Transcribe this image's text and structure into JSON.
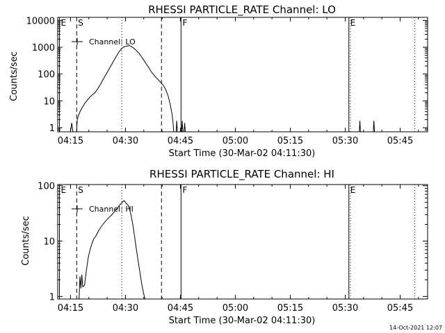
{
  "footer_timestamp": "14-Oct-2021 12:07",
  "chart_data": [
    {
      "type": "line",
      "title": "RHESSI PARTICLE_RATE Channel: LO",
      "xlabel": "Start Time (30-Mar-02 04:11:30)",
      "ylabel": "Counts/sec",
      "y_scale": "log",
      "xlim": [
        "04:11:30",
        "05:52:30"
      ],
      "ylim": [
        0.7,
        13000
      ],
      "x_ticks": [
        "04:15",
        "04:30",
        "04:45",
        "05:00",
        "05:15",
        "05:30",
        "05:45"
      ],
      "y_ticks": [
        {
          "value": 1,
          "label": "1"
        },
        {
          "value": 10,
          "label": "10"
        },
        {
          "value": 100,
          "label": "100"
        },
        {
          "value": 1000,
          "label": "1000"
        },
        {
          "value": 10000,
          "label": "10000"
        }
      ],
      "legend": {
        "position": "top-left",
        "label": "Channel: LO"
      },
      "markers": [
        {
          "time": "04:11:58",
          "label": "E",
          "style": "solid"
        },
        {
          "time": "04:16:41",
          "label": "S",
          "style": "dashed"
        },
        {
          "time": "04:29:00",
          "label": "",
          "style": "dotted"
        },
        {
          "time": "04:39:50",
          "label": "",
          "style": "dashed"
        },
        {
          "time": "04:45:10",
          "label": "F",
          "style": "solid"
        },
        {
          "time": "05:31:00",
          "label": "E",
          "style": "solid"
        },
        {
          "time": "05:31:25",
          "label": "",
          "style": "dotted"
        },
        {
          "time": "05:49:00",
          "label": "",
          "style": "dotted"
        }
      ],
      "series": [
        {
          "name": "Channel: LO",
          "points": [
            [
              "04:15:00",
              0.7
            ],
            [
              "04:15:20",
              1.5
            ],
            [
              "04:15:40",
              0.7
            ],
            [
              "04:16:40",
              0.7
            ],
            [
              "04:16:50",
              2.0
            ],
            [
              "04:17:10",
              2.8
            ],
            [
              "04:17:40",
              4.2
            ],
            [
              "04:18:20",
              6.0
            ],
            [
              "04:19:00",
              8.5
            ],
            [
              "04:19:40",
              11
            ],
            [
              "04:20:20",
              14
            ],
            [
              "04:21:00",
              17
            ],
            [
              "04:21:40",
              20
            ],
            [
              "04:22:20",
              27
            ],
            [
              "04:23:00",
              38
            ],
            [
              "04:23:40",
              55
            ],
            [
              "04:24:20",
              80
            ],
            [
              "04:25:00",
              115
            ],
            [
              "04:25:40",
              165
            ],
            [
              "04:26:20",
              240
            ],
            [
              "04:27:00",
              350
            ],
            [
              "04:27:40",
              500
            ],
            [
              "04:28:20",
              700
            ],
            [
              "04:29:00",
              900
            ],
            [
              "04:29:40",
              1050
            ],
            [
              "04:30:20",
              1100
            ],
            [
              "04:31:00",
              1150
            ],
            [
              "04:31:40",
              1050
            ],
            [
              "04:32:20",
              900
            ],
            [
              "04:33:00",
              750
            ],
            [
              "04:33:40",
              600
            ],
            [
              "04:34:20",
              450
            ],
            [
              "04:35:00",
              330
            ],
            [
              "04:35:40",
              240
            ],
            [
              "04:36:20",
              175
            ],
            [
              "04:37:00",
              125
            ],
            [
              "04:37:40",
              95
            ],
            [
              "04:38:20",
              75
            ],
            [
              "04:39:00",
              60
            ],
            [
              "04:39:40",
              48
            ],
            [
              "04:40:20",
              38
            ],
            [
              "04:41:00",
              26
            ],
            [
              "04:41:40",
              15
            ],
            [
              "04:42:10",
              8
            ],
            [
              "04:42:40",
              3.5
            ],
            [
              "04:43:00",
              1.5
            ],
            [
              "04:43:10",
              0.7
            ],
            [
              "04:43:50",
              0.7
            ],
            [
              "04:44:00",
              1.8
            ],
            [
              "04:44:10",
              0.7
            ],
            [
              "04:45:20",
              0.7
            ],
            [
              "04:45:30",
              1.8
            ],
            [
              "04:45:40",
              0.7
            ],
            [
              "04:46:00",
              0.7
            ],
            [
              "04:46:10",
              1.5
            ],
            [
              "04:46:20",
              0.7
            ],
            [
              "05:30:00",
              0.7
            ],
            [
              "05:33:50",
              0.7
            ],
            [
              "05:34:00",
              1.8
            ],
            [
              "05:34:10",
              0.7
            ],
            [
              "05:37:40",
              0.7
            ],
            [
              "05:37:50",
              1.8
            ],
            [
              "05:38:00",
              0.7
            ]
          ]
        }
      ]
    },
    {
      "type": "line",
      "title": "RHESSI PARTICLE_RATE Channel: HI",
      "xlabel": "Start Time (30-Mar-02 04:11:30)",
      "ylabel": "Counts/sec",
      "y_scale": "log",
      "xlim": [
        "04:11:30",
        "05:52:30"
      ],
      "ylim": [
        0.9,
        105
      ],
      "x_ticks": [
        "04:15",
        "04:30",
        "04:45",
        "05:00",
        "05:15",
        "05:30",
        "05:45"
      ],
      "y_ticks": [
        {
          "value": 1,
          "label": "1"
        },
        {
          "value": 10,
          "label": "10"
        },
        {
          "value": 100,
          "label": "100"
        }
      ],
      "legend": {
        "position": "top-left",
        "label": "Channel: HI"
      },
      "markers": [
        {
          "time": "04:11:58",
          "label": "E",
          "style": "solid"
        },
        {
          "time": "04:16:41",
          "label": "S",
          "style": "dashed"
        },
        {
          "time": "04:29:00",
          "label": "",
          "style": "dotted"
        },
        {
          "time": "04:39:50",
          "label": "",
          "style": "dashed"
        },
        {
          "time": "04:45:10",
          "label": "F",
          "style": "solid"
        },
        {
          "time": "05:31:00",
          "label": "E",
          "style": "solid"
        },
        {
          "time": "05:31:25",
          "label": "",
          "style": "dotted"
        },
        {
          "time": "05:49:00",
          "label": "",
          "style": "dotted"
        }
      ],
      "series": [
        {
          "name": "Channel: HI",
          "points": [
            [
              "04:17:20",
              0.9
            ],
            [
              "04:17:35",
              2.3
            ],
            [
              "04:17:50",
              1.4
            ],
            [
              "04:18:05",
              2.5
            ],
            [
              "04:18:20",
              1.5
            ],
            [
              "04:18:50",
              1.6
            ],
            [
              "04:19:20",
              3.0
            ],
            [
              "04:19:50",
              5.0
            ],
            [
              "04:20:20",
              7.0
            ],
            [
              "04:20:50",
              9.0
            ],
            [
              "04:21:20",
              11
            ],
            [
              "04:21:50",
              12
            ],
            [
              "04:22:20",
              14
            ],
            [
              "04:22:50",
              16
            ],
            [
              "04:23:20",
              18
            ],
            [
              "04:23:50",
              20
            ],
            [
              "04:24:20",
              22
            ],
            [
              "04:24:50",
              24
            ],
            [
              "04:25:20",
              26
            ],
            [
              "04:25:50",
              28
            ],
            [
              "04:26:20",
              30
            ],
            [
              "04:26:50",
              33
            ],
            [
              "04:27:20",
              36
            ],
            [
              "04:27:50",
              40
            ],
            [
              "04:28:20",
              44
            ],
            [
              "04:28:50",
              48
            ],
            [
              "04:29:20",
              52
            ],
            [
              "04:29:40",
              54
            ],
            [
              "04:30:00",
              50
            ],
            [
              "04:30:20",
              47
            ],
            [
              "04:30:40",
              45
            ],
            [
              "04:31:00",
              40
            ],
            [
              "04:31:30",
              30
            ],
            [
              "04:32:00",
              20
            ],
            [
              "04:32:30",
              12
            ],
            [
              "04:33:00",
              7.0
            ],
            [
              "04:33:30",
              4.2
            ],
            [
              "04:34:00",
              2.6
            ],
            [
              "04:34:30",
              1.6
            ],
            [
              "04:35:00",
              1.1
            ],
            [
              "04:35:20",
              0.9
            ]
          ]
        }
      ]
    }
  ]
}
